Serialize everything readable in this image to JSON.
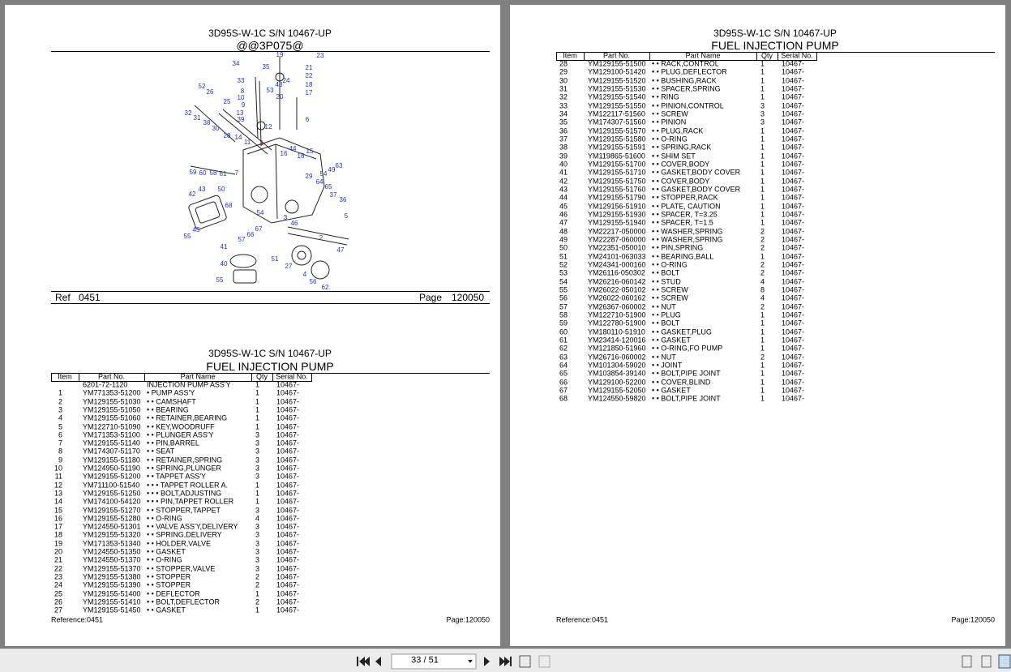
{
  "left_page": {
    "header": {
      "title": "3D95S-W-1C S/N 10467-UP",
      "subtitle": "@@3P075@"
    },
    "diagram": {
      "callouts": [
        "19",
        "23",
        "34",
        "35",
        "21",
        "22",
        "24",
        "48",
        "18",
        "33",
        "53",
        "17",
        "8",
        "52",
        "26",
        "25",
        "10",
        "20",
        "9",
        "13",
        "32",
        "31",
        "39",
        "6",
        "38",
        "12",
        "30",
        "28",
        "14",
        "11",
        "1",
        "44",
        "16",
        "16",
        "15",
        "29",
        "54",
        "49",
        "63",
        "59",
        "60",
        "58",
        "61",
        "7",
        "64",
        "65",
        "50",
        "43",
        "42",
        "37",
        "36",
        "68",
        "54",
        "3",
        "46",
        "5",
        "67",
        "45",
        "66",
        "57",
        "2",
        "55",
        "41",
        "47",
        "51",
        "40",
        "27",
        "4",
        "56",
        "55",
        "62"
      ]
    },
    "ref_label": "Ref",
    "ref": "0451",
    "page_label": "Page",
    "page": "120050",
    "section": {
      "title": "3D95S-W-1C S/N 10467-UP",
      "subtitle": "FUEL INJECTION PUMP"
    },
    "table": {
      "columns": [
        "Item",
        "Part No.",
        "Part Name",
        "Qty",
        "Serial No."
      ],
      "rows": [
        [
          null,
          "6201-72-1120",
          "INJECTION PUMP ASS'Y",
          "1",
          "10467-"
        ],
        [
          "1",
          "YM771353-51200",
          "• PUMP ASS'Y",
          "1",
          "10467-"
        ],
        [
          "2",
          "YM129155-51030",
          "• • CAMSHAFT",
          "1",
          "10467-"
        ],
        [
          "3",
          "YM129155-51050",
          "• • BEARING",
          "1",
          "10467-"
        ],
        [
          "4",
          "YM129155-51060",
          "• • RETAINER,BEARING",
          "1",
          "10467-"
        ],
        [
          "5",
          "YM122710-51090",
          "• • KEY,WOODRUFF",
          "1",
          "10467-"
        ],
        [
          "6",
          "YM171353-51100",
          "• • PLUNGER ASS'Y",
          "3",
          "10467-"
        ],
        [
          "7",
          "YM129155-51140",
          "• • PIN,BARREL",
          "3",
          "10467-"
        ],
        [
          "8",
          "YM174307-51170",
          "• • SEAT",
          "3",
          "10467-"
        ],
        [
          "9",
          "YM129155-51180",
          "• • RETAINER,SPRING",
          "3",
          "10467-"
        ],
        [
          "10",
          "YM124950-51190",
          "• • SPRING,PLUNGER",
          "3",
          "10467-"
        ],
        [
          "11",
          "YM129155-51200",
          "• • TAPPET ASS'Y",
          "3",
          "10467-"
        ],
        [
          "12",
          "YM711100-51540",
          "• • • TAPPET ROLLER A.",
          "1",
          "10467-"
        ],
        [
          "13",
          "YM129155-51250",
          "• • • BOLT,ADJUSTING",
          "1",
          "10467-"
        ],
        [
          "14",
          "YM174100-54120",
          "• • • PIN,TAPPET ROLLER",
          "1",
          "10467-"
        ],
        [
          "15",
          "YM129155-51270",
          "• • STOPPER,TAPPET",
          "3",
          "10467-"
        ],
        [
          "16",
          "YM129155-51280",
          "• • O-RING",
          "4",
          "10467-"
        ],
        [
          "17",
          "YM124550-51301",
          "• • VALVE ASS'Y,DELIVERY",
          "3",
          "10467-"
        ],
        [
          "18",
          "YM129155-51320",
          "• • SPRING,DELIVERY",
          "3",
          "10467-"
        ],
        [
          "19",
          "YM171353-51340",
          "• • HOLDER,VALVE",
          "3",
          "10467-"
        ],
        [
          "20",
          "YM124550-51350",
          "• • GASKET",
          "3",
          "10467-"
        ],
        [
          "21",
          "YM124550-51370",
          "• • O-RING",
          "3",
          "10467-"
        ],
        [
          "22",
          "YM129155-51370",
          "• • STOPPER,VALVE",
          "3",
          "10467-"
        ],
        [
          "23",
          "YM129155-51380",
          "• • STOPPER",
          "2",
          "10467-"
        ],
        [
          "24",
          "YM129155-51390",
          "• • STOPPER",
          "2",
          "10467-"
        ],
        [
          "25",
          "YM129155-51400",
          "• • DEFLECTOR",
          "1",
          "10467-"
        ],
        [
          "26",
          "YM129155-51410",
          "• • BOLT,DEFLECTOR",
          "2",
          "10467-"
        ],
        [
          "27",
          "YM129155-51450",
          "• • GASKET",
          "1",
          "10467-"
        ]
      ]
    },
    "footer": {
      "reference": "Reference:0451",
      "page": "Page:120050"
    }
  },
  "right_page": {
    "header": {
      "title": "3D95S-W-1C S/N 10467-UP",
      "subtitle": "FUEL INJECTION PUMP"
    },
    "table": {
      "columns": [
        "Item",
        "Part No.",
        "Part Name",
        "Qty",
        "Serial No."
      ],
      "rows": [
        [
          "28",
          "YM129155-51500",
          "• • RACK,CONTROL",
          "1",
          "10467-"
        ],
        [
          "29",
          "YM129100-51420",
          "• • PLUG,DEFLECTOR",
          "1",
          "10467-"
        ],
        [
          "30",
          "YM129155-51520",
          "• • BUSHING,RACK",
          "1",
          "10467-"
        ],
        [
          "31",
          "YM129155-51530",
          "• • SPACER,SPRING",
          "1",
          "10467-"
        ],
        [
          "32",
          "YM129155-51540",
          "• • RING",
          "1",
          "10467-"
        ],
        [
          "33",
          "YM129155-51550",
          "• • PINION,CONTROL",
          "3",
          "10467-"
        ],
        [
          "34",
          "YM122117-51560",
          "• • SCREW",
          "3",
          "10467-"
        ],
        [
          "35",
          "YM174307-51560",
          "• • PINION",
          "3",
          "10467-"
        ],
        [
          "36",
          "YM129155-51570",
          "• • PLUG,RACK",
          "1",
          "10467-"
        ],
        [
          "37",
          "YM129155-51580",
          "• • O-RING",
          "1",
          "10467-"
        ],
        [
          "38",
          "YM129155-51591",
          "• • SPRING,RACK",
          "1",
          "10467-"
        ],
        [
          "39",
          "YM119865-51600",
          "• • SHIM SET",
          "1",
          "10467-"
        ],
        [
          "40",
          "YM129155-51700",
          "• • COVER,BODY",
          "1",
          "10467-"
        ],
        [
          "41",
          "YM129155-51710",
          "• • GASKET,BODY COVER",
          "1",
          "10467-"
        ],
        [
          "42",
          "YM129155-51750",
          "• • COVER,BODY",
          "1",
          "10467-"
        ],
        [
          "43",
          "YM129155-51760",
          "• • GASKET,BODY COVER",
          "1",
          "10467-"
        ],
        [
          "44",
          "YM129155-51790",
          "• • STOPPER,RACK",
          "1",
          "10467-"
        ],
        [
          "45",
          "YM129156-51910",
          "• • PLATE, CAUTION",
          "1",
          "10467-"
        ],
        [
          "46",
          "YM129155-51930",
          "• • SPACER, T=3.25",
          "1",
          "10467-"
        ],
        [
          "47",
          "YM129155-51940",
          "• • SPACER, T=1.5",
          "1",
          "10467-"
        ],
        [
          "48",
          "YM22217-050000",
          "• • WASHER,SPRING",
          "2",
          "10467-"
        ],
        [
          "49",
          "YM22287-060000",
          "• • WASHER,SPRING",
          "2",
          "10467-"
        ],
        [
          "50",
          "YM22351-050010",
          "• • PIN,SPRING",
          "2",
          "10467-"
        ],
        [
          "51",
          "YM24101-063033",
          "• • BEARING,BALL",
          "1",
          "10467-"
        ],
        [
          "52",
          "YM24341-000160",
          "• • O-RING",
          "2",
          "10467-"
        ],
        [
          "53",
          "YM26116-050302",
          "• • BOLT",
          "2",
          "10467-"
        ],
        [
          "54",
          "YM26216-060142",
          "• • STUD",
          "4",
          "10467-"
        ],
        [
          "55",
          "YM26022-050102",
          "• • SCREW",
          "8",
          "10467-"
        ],
        [
          "56",
          "YM26022-060162",
          "• • SCREW",
          "4",
          "10467-"
        ],
        [
          "57",
          "YM26367-060002",
          "• • NUT",
          "2",
          "10467-"
        ],
        [
          "58",
          "YM122710-51900",
          "• • PLUG",
          "1",
          "10467-"
        ],
        [
          "59",
          "YM122780-51900",
          "• • BOLT",
          "1",
          "10467-"
        ],
        [
          "60",
          "YM180110-51910",
          "• • GASKET,PLUG",
          "1",
          "10467-"
        ],
        [
          "61",
          "YM23414-120016",
          "• • GASKET",
          "1",
          "10467-"
        ],
        [
          "62",
          "YM121850-51960",
          "• • O-RING,FO PUMP",
          "1",
          "10467-"
        ],
        [
          "63",
          "YM26716-060002",
          "• • NUT",
          "2",
          "10467-"
        ],
        [
          "64",
          "YM101304-59020",
          "• • JOINT",
          "1",
          "10467-"
        ],
        [
          "65",
          "YM103854-39140",
          "• • BOLT,PIPE JOINT",
          "1",
          "10467-"
        ],
        [
          "66",
          "YM129100-52200",
          "• • COVER,BLIND",
          "1",
          "10467-"
        ],
        [
          "67",
          "YM129155-52050",
          "• • GASKET",
          "1",
          "10467-"
        ],
        [
          "68",
          "YM124550-59820",
          "• • BOLT,PIPE JOINT",
          "1",
          "10467-"
        ]
      ]
    },
    "footer": {
      "reference": "Reference:0451",
      "page": "Page:120050"
    }
  },
  "toolbar": {
    "page_indicator": "33 / 51"
  }
}
